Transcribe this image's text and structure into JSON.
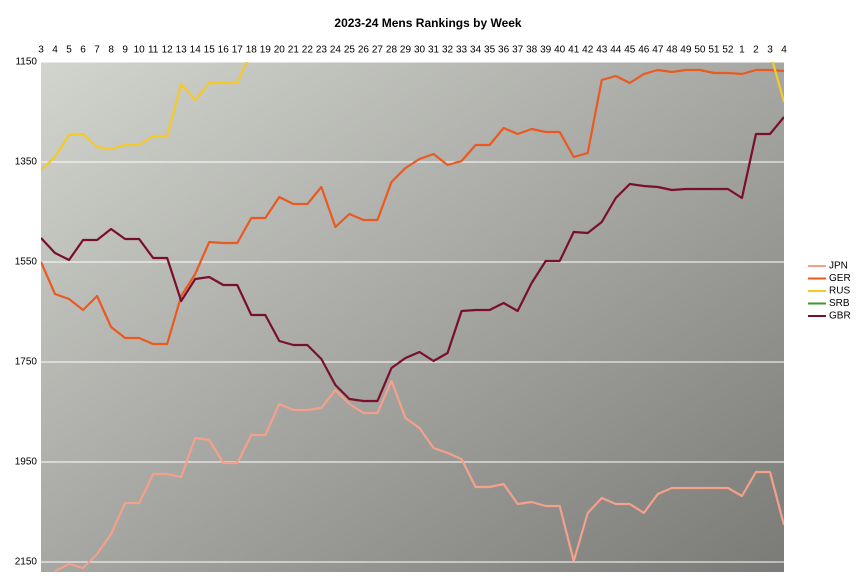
{
  "chart_data": {
    "type": "line",
    "title": "2023-24 Mens Rankings by Week",
    "categories": [
      3,
      4,
      5,
      6,
      7,
      8,
      9,
      10,
      11,
      12,
      13,
      14,
      15,
      16,
      17,
      18,
      19,
      20,
      21,
      22,
      23,
      24,
      25,
      26,
      27,
      28,
      29,
      30,
      31,
      32,
      33,
      34,
      35,
      36,
      37,
      38,
      39,
      40,
      41,
      42,
      43,
      44,
      45,
      46,
      47,
      48,
      49,
      50,
      51,
      52,
      1,
      2,
      3,
      4
    ],
    "ylim": [
      1150,
      2170
    ],
    "y_reversed": true,
    "yticks": [
      1150,
      1350,
      1550,
      1750,
      1950,
      2150
    ],
    "grid": true,
    "legend": "right",
    "series": [
      {
        "name": "JPN",
        "color": "#f4a08a",
        "values": [
          null,
          2168,
          2154,
          2162,
          2134,
          2094,
          2032,
          2032,
          1974,
          1974,
          1980,
          1902,
          1906,
          1952,
          1952,
          1896,
          1896,
          1834,
          1846,
          1846,
          1842,
          1806,
          1834,
          1852,
          1852,
          1788,
          1862,
          1882,
          1922,
          1932,
          1944,
          2000,
          2000,
          1994,
          2034,
          2030,
          2038,
          2038,
          2148,
          2052,
          2022,
          2034,
          2034,
          2052,
          2014,
          2002,
          2002,
          2002,
          2002,
          2002,
          2018,
          1970,
          1970,
          2076
        ]
      },
      {
        "name": "GER",
        "color": "#ea5a20",
        "values": [
          1550,
          1614,
          1624,
          1646,
          1618,
          1680,
          1702,
          1702,
          1714,
          1714,
          1618,
          1574,
          1510,
          1512,
          1512,
          1462,
          1462,
          1420,
          1434,
          1434,
          1400,
          1480,
          1454,
          1466,
          1466,
          1390,
          1362,
          1344,
          1334,
          1356,
          1348,
          1316,
          1316,
          1282,
          1294,
          1284,
          1290,
          1290,
          1340,
          1332,
          1186,
          1178,
          1192,
          1174,
          1166,
          1170,
          1166,
          1166,
          1172,
          1172,
          1174,
          1166,
          1166,
          1168
        ]
      },
      {
        "name": "RUS",
        "color": "#f5c92a",
        "values": [
          1366,
          1340,
          1296,
          1294,
          1320,
          1324,
          1316,
          1316,
          1298,
          1298,
          1194,
          1226,
          1192,
          1192,
          1192,
          1130,
          null,
          null,
          null,
          null,
          null,
          null,
          null,
          null,
          null,
          null,
          null,
          null,
          null,
          null,
          null,
          null,
          null,
          null,
          null,
          null,
          null,
          null,
          null,
          null,
          null,
          null,
          null,
          null,
          null,
          null,
          null,
          null,
          null,
          null,
          null,
          null,
          1130,
          1230
        ]
      },
      {
        "name": "SRB",
        "color": "#3d9a2a",
        "values": [
          null,
          null,
          null,
          null,
          null,
          null,
          null,
          null,
          null,
          null,
          null,
          null,
          null,
          null,
          null,
          null,
          null,
          null,
          null,
          null,
          null,
          null,
          null,
          null,
          null,
          null,
          null,
          null,
          null,
          null,
          null,
          null,
          null,
          null,
          null,
          null,
          null,
          null,
          null,
          null,
          null,
          null,
          null,
          null,
          null,
          null,
          null,
          null,
          null,
          null,
          null,
          null,
          null,
          null
        ]
      },
      {
        "name": "GBR",
        "color": "#7a0f2c",
        "values": [
          1502,
          1532,
          1546,
          1506,
          1506,
          1484,
          1504,
          1504,
          1542,
          1542,
          1628,
          1584,
          1580,
          1596,
          1596,
          1656,
          1656,
          1708,
          1716,
          1716,
          1744,
          1796,
          1824,
          1828,
          1828,
          1762,
          1742,
          1730,
          1748,
          1732,
          1648,
          1646,
          1646,
          1632,
          1648,
          1592,
          1548,
          1548,
          1490,
          1492,
          1470,
          1422,
          1394,
          1398,
          1400,
          1406,
          1404,
          1404,
          1404,
          1404,
          1422,
          1294,
          1294,
          1260
        ]
      }
    ]
  }
}
